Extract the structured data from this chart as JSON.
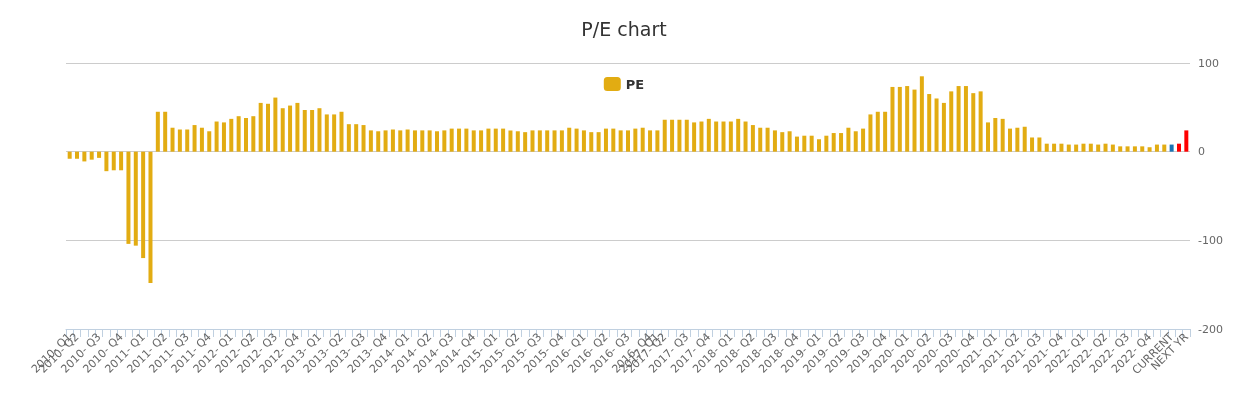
{
  "chart_data": {
    "type": "bar",
    "title": "P/E chart",
    "categories": [
      "2010- Q1",
      "2010- Q2",
      null,
      null,
      "2010- Q3",
      null,
      null,
      "2010- Q4",
      null,
      null,
      "2011- Q1",
      null,
      null,
      "2011- Q2",
      null,
      null,
      "2011- Q3",
      null,
      null,
      "2011- Q4",
      null,
      null,
      "2012- Q1",
      null,
      null,
      "2012- Q2",
      null,
      null,
      "2012- Q3",
      null,
      null,
      "2012- Q4",
      null,
      null,
      "2013- Q1",
      null,
      null,
      "2013- Q2",
      null,
      null,
      "2013- Q3",
      null,
      null,
      "2013- Q4",
      null,
      null,
      "2014- Q1",
      null,
      null,
      "2014- Q2",
      null,
      null,
      "2014- Q3",
      null,
      null,
      "2014- Q4",
      null,
      null,
      "2015- Q1",
      null,
      null,
      "2015- Q2",
      null,
      null,
      "2015- Q3",
      null,
      null,
      "2015- Q4",
      null,
      null,
      "2016- Q1",
      null,
      null,
      "2016- Q2",
      null,
      null,
      "2016- Q3",
      null,
      null,
      "2016- Q4",
      "2017- Q1",
      "2017- Q2",
      null,
      null,
      "2017- Q3",
      null,
      null,
      "2017- Q4",
      null,
      null,
      "2018- Q1",
      null,
      null,
      "2018- Q2",
      null,
      null,
      "2018- Q3",
      null,
      null,
      "2018- Q4",
      null,
      null,
      "2019- Q1",
      null,
      null,
      "2019- Q2",
      null,
      null,
      "2019- Q3",
      null,
      null,
      "2019- Q4",
      null,
      null,
      "2020- Q1",
      null,
      null,
      "2020- Q2",
      null,
      null,
      "2020- Q3",
      null,
      null,
      "2020- Q4",
      null,
      null,
      "2021- Q1",
      null,
      null,
      "2021- Q2",
      null,
      null,
      "2021- Q3",
      null,
      null,
      "2021- Q4",
      null,
      null,
      "2022- Q1",
      null,
      null,
      "2022- Q2",
      null,
      null,
      "2022- Q3",
      null,
      null,
      "2022- Q4",
      null,
      null,
      "CURRENT",
      null,
      "NEXT YR"
    ],
    "series": [
      {
        "name": "PE",
        "color": "#e2ac12",
        "values": [
          -8,
          -8,
          -11,
          -9,
          -7,
          -22,
          -21,
          -21,
          -104,
          -106,
          -120,
          -148,
          45,
          45,
          27,
          25,
          25,
          30,
          27,
          23,
          34,
          33,
          37,
          40,
          38,
          40,
          55,
          54,
          61,
          49,
          52,
          55,
          47,
          47,
          49,
          42,
          42,
          45,
          31,
          31,
          30,
          24,
          23,
          24,
          25,
          24,
          25,
          24,
          24,
          24,
          23,
          24,
          26,
          26,
          26,
          24,
          24,
          26,
          26,
          26,
          24,
          23,
          22,
          24,
          24,
          24,
          24,
          24,
          27,
          26,
          24,
          22,
          22,
          26,
          26,
          24,
          24,
          26,
          27,
          24,
          24,
          36,
          36,
          36,
          36,
          33,
          34,
          37,
          34,
          34,
          34,
          37,
          34,
          30,
          27,
          27,
          24,
          22,
          23,
          17,
          18,
          18,
          14,
          18,
          21,
          21,
          27,
          23,
          26,
          42,
          45,
          45,
          73,
          73,
          74,
          70,
          85,
          65,
          60,
          55,
          68,
          74,
          74,
          66,
          68,
          33,
          38,
          37,
          26,
          27,
          28,
          16,
          16,
          9,
          9,
          9,
          8,
          8,
          9,
          9,
          8,
          9,
          8,
          6,
          6,
          6,
          6,
          5,
          8,
          8,
          8,
          9,
          24
        ],
        "colors": [
          "#e2ac12",
          "#e2ac12",
          "#e2ac12",
          "#e2ac12",
          "#e2ac12",
          "#e2ac12",
          "#e2ac12",
          "#e2ac12",
          "#e2ac12",
          "#e2ac12",
          "#e2ac12",
          "#e2ac12",
          "#e2ac12",
          "#e2ac12",
          "#e2ac12",
          "#e2ac12",
          "#e2ac12",
          "#e2ac12",
          "#e2ac12",
          "#e2ac12",
          "#e2ac12",
          "#e2ac12",
          "#e2ac12",
          "#e2ac12",
          "#e2ac12",
          "#e2ac12",
          "#e2ac12",
          "#e2ac12",
          "#e2ac12",
          "#e2ac12",
          "#e2ac12",
          "#e2ac12",
          "#e2ac12",
          "#e2ac12",
          "#e2ac12",
          "#e2ac12",
          "#e2ac12",
          "#e2ac12",
          "#e2ac12",
          "#e2ac12",
          "#e2ac12",
          "#e2ac12",
          "#e2ac12",
          "#e2ac12",
          "#e2ac12",
          "#e2ac12",
          "#e2ac12",
          "#e2ac12",
          "#e2ac12",
          "#e2ac12",
          "#e2ac12",
          "#e2ac12",
          "#e2ac12",
          "#e2ac12",
          "#e2ac12",
          "#e2ac12",
          "#e2ac12",
          "#e2ac12",
          "#e2ac12",
          "#e2ac12",
          "#e2ac12",
          "#e2ac12",
          "#e2ac12",
          "#e2ac12",
          "#e2ac12",
          "#e2ac12",
          "#e2ac12",
          "#e2ac12",
          "#e2ac12",
          "#e2ac12",
          "#e2ac12",
          "#e2ac12",
          "#e2ac12",
          "#e2ac12",
          "#e2ac12",
          "#e2ac12",
          "#e2ac12",
          "#e2ac12",
          "#e2ac12",
          "#e2ac12",
          "#e2ac12",
          "#e2ac12",
          "#e2ac12",
          "#e2ac12",
          "#e2ac12",
          "#e2ac12",
          "#e2ac12",
          "#e2ac12",
          "#e2ac12",
          "#e2ac12",
          "#e2ac12",
          "#e2ac12",
          "#e2ac12",
          "#e2ac12",
          "#e2ac12",
          "#e2ac12",
          "#e2ac12",
          "#e2ac12",
          "#e2ac12",
          "#e2ac12",
          "#e2ac12",
          "#e2ac12",
          "#e2ac12",
          "#e2ac12",
          "#e2ac12",
          "#e2ac12",
          "#e2ac12",
          "#e2ac12",
          "#e2ac12",
          "#e2ac12",
          "#e2ac12",
          "#e2ac12",
          "#e2ac12",
          "#e2ac12",
          "#e2ac12",
          "#e2ac12",
          "#e2ac12",
          "#e2ac12",
          "#e2ac12",
          "#e2ac12",
          "#e2ac12",
          "#e2ac12",
          "#e2ac12",
          "#e2ac12",
          "#e2ac12",
          "#e2ac12",
          "#e2ac12",
          "#e2ac12",
          "#e2ac12",
          "#e2ac12",
          "#e2ac12",
          "#e2ac12",
          "#e2ac12",
          "#e2ac12",
          "#e2ac12",
          "#e2ac12",
          "#e2ac12",
          "#e2ac12",
          "#e2ac12",
          "#e2ac12",
          "#e2ac12",
          "#e2ac12",
          "#e2ac12",
          "#e2ac12",
          "#e2ac12",
          "#e2ac12",
          "#e2ac12",
          "#e2ac12",
          "#e2ac12",
          "#e2ac12",
          "#1a73b3",
          "#ff0000",
          "#ff0000"
        ]
      }
    ],
    "ylim": [
      -200,
      100
    ],
    "yticks": [
      -200,
      -100,
      0,
      100
    ],
    "grid": "y",
    "legend": "top"
  }
}
